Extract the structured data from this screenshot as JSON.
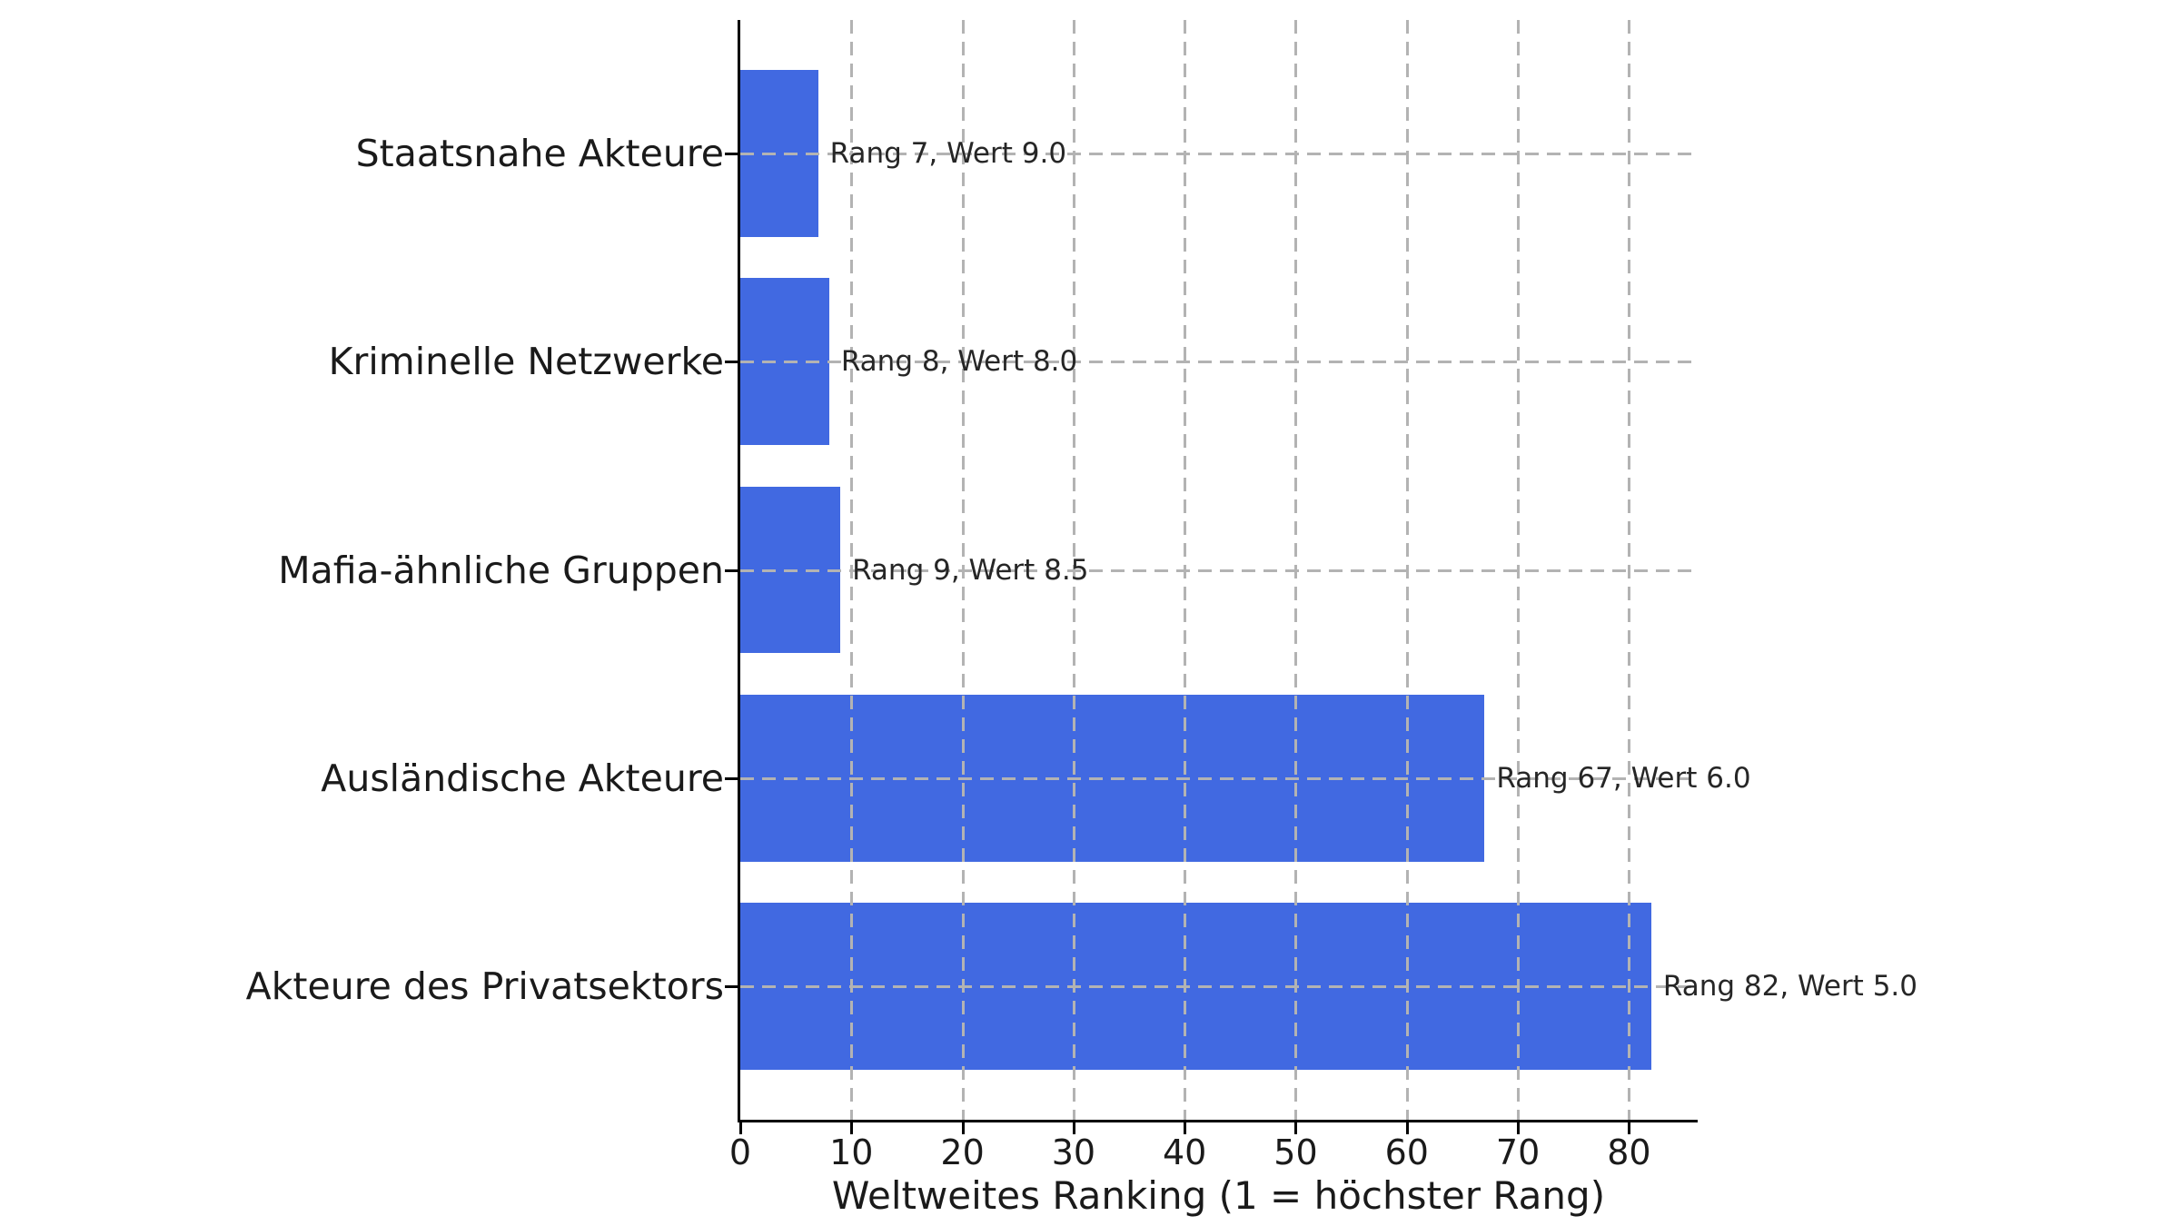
{
  "chart_data": {
    "type": "bar",
    "orientation": "horizontal",
    "title": "",
    "xlabel": "Weltweites Ranking (1 = höchster Rang)",
    "ylabel": "",
    "categories": [
      "Staatsnahe Akteure",
      "Kriminelle Netzwerke",
      "Mafia-ähnliche Gruppen",
      "Ausländische Akteure",
      "Akteure des Privatsektors"
    ],
    "series": [
      {
        "name": "Rang",
        "values": [
          7,
          8,
          9,
          67,
          82
        ]
      },
      {
        "name": "Wert",
        "values": [
          9.0,
          8.0,
          8.5,
          6.0,
          5.0
        ]
      }
    ],
    "bar_metric": "Rang",
    "annotations": [
      "Rang 7, Wert 9.0",
      "Rang 8, Wert 8.0",
      "Rang 9, Wert 8.5",
      "Rang 67, Wert 6.0",
      "Rang 82, Wert 5.0"
    ],
    "xticks": [
      0,
      10,
      20,
      30,
      40,
      50,
      60,
      70,
      80
    ],
    "xlim": [
      0,
      86.1
    ],
    "grid": true,
    "legend": false,
    "colors": {
      "bar": "#4169E1",
      "grid": "#b3b3b3",
      "spine": "#000000",
      "tick_text": "#1a1a1a",
      "annotation_text": "#262626"
    }
  }
}
